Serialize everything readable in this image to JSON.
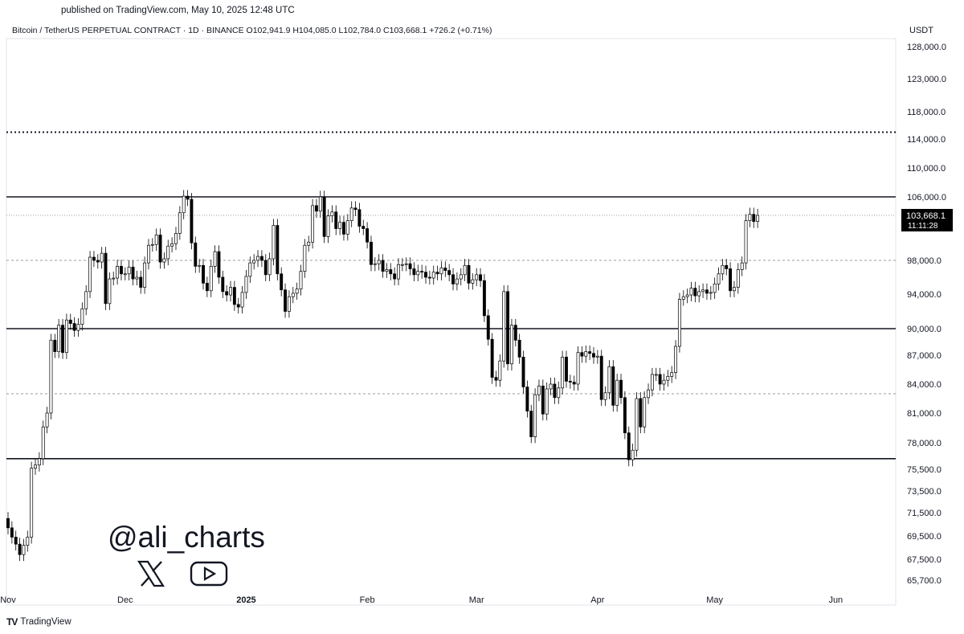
{
  "header": {
    "published": "published on TradingView.com, May 10, 2025 12:48 UTC",
    "title": "Bitcoin / TetherUS PERPETUAL CONTRACT · 1D · BINANCE  O102,941.9  H104,085.0  L102,784.0  C103,668.1  +726.2 (+0.71%)",
    "currency": "USDT"
  },
  "footer": {
    "brand": "TradingView"
  },
  "watermark": {
    "handle": "@ali_charts",
    "icons": [
      "x-logo-icon",
      "youtube-icon"
    ]
  },
  "colors": {
    "up": "#ffffff",
    "down": "#000000",
    "line": "#000000",
    "price_tag_bg": "#000000"
  },
  "chart_data": {
    "type": "candlestick",
    "symbol": "BTCUSDT.P",
    "timeframe": "1D",
    "ylabel": "USDT",
    "y_ticks": [
      128000,
      123000,
      118000,
      114000,
      110000,
      106000,
      98000,
      94000,
      90000,
      87000,
      84000,
      81000,
      78000,
      75500,
      73500,
      71500,
      69500,
      67500,
      65700
    ],
    "y_tick_labels": [
      "128,000.0",
      "123,000.0",
      "118,000.0",
      "114,000.0",
      "110,000.0",
      "106,000.0",
      "98,000.0",
      "94,000.0",
      "90,000.0",
      "87,000.0",
      "84,000.0",
      "81,000.0",
      "78,000.0",
      "75,500.0",
      "73,500.0",
      "71,500.0",
      "69,500.0",
      "67,500.0",
      "65,700.0"
    ],
    "x_ticks": [
      {
        "date": "2024-11-01",
        "label": "Nov"
      },
      {
        "date": "2024-12-01",
        "label": "Dec"
      },
      {
        "date": "2025-01-01",
        "label": "2025"
      },
      {
        "date": "2025-02-01",
        "label": "Feb"
      },
      {
        "date": "2025-03-01",
        "label": "Mar"
      },
      {
        "date": "2025-04-01",
        "label": "Apr"
      },
      {
        "date": "2025-05-01",
        "label": "May"
      },
      {
        "date": "2025-06-01",
        "label": "Jun"
      }
    ],
    "x_range": [
      "2024-11-01",
      "2025-06-10"
    ],
    "y_range": [
      65000,
      130000
    ],
    "last_price": {
      "value": 103668.1,
      "label": "103,668.1",
      "countdown": "11:11:28"
    },
    "horizontal_lines": [
      {
        "value": 106000,
        "style": "solid"
      },
      {
        "value": 90000,
        "style": "solid"
      },
      {
        "value": 76500,
        "style": "solid"
      },
      {
        "value": 115000,
        "style": "dotted"
      },
      {
        "value": 98000,
        "style": "dashed"
      },
      {
        "value": 83000,
        "style": "dashed"
      }
    ],
    "start_date": "2024-11-01",
    "closes": [
      70200,
      69400,
      68800,
      67900,
      68700,
      69400,
      75600,
      75900,
      76500,
      79600,
      81000,
      88700,
      87400,
      90400,
      87300,
      91000,
      90600,
      89800,
      90500,
      92300,
      94300,
      98400,
      98000,
      97800,
      98900,
      92900,
      95800,
      95900,
      97300,
      96400,
      96400,
      97200,
      95800,
      96000,
      94800,
      97700,
      99900,
      100000,
      101200,
      97800,
      98200,
      99800,
      100100,
      101400,
      104000,
      106100,
      105700,
      100200,
      97300,
      97400,
      95300,
      94400,
      97300,
      99100,
      96000,
      94300,
      93900,
      94800,
      92800,
      92500,
      94200,
      96100,
      97700,
      98000,
      98500,
      98000,
      96300,
      98200,
      102400,
      96400,
      94500,
      92000,
      93700,
      94100,
      94600,
      96700,
      99900,
      100300,
      104900,
      104200,
      106000,
      101000,
      103600,
      104100,
      102000,
      102800,
      101300,
      103000,
      104600,
      104400,
      102300,
      102000,
      100300,
      97500,
      97600,
      98000,
      96700,
      96900,
      96400,
      95800,
      97500,
      97500,
      97600,
      97000,
      96300,
      96700,
      96600,
      96000,
      95900,
      96600,
      96400,
      97100,
      96800,
      96300,
      95200,
      95800,
      96300,
      97400,
      95300,
      95700,
      96300,
      95600,
      91500,
      88800,
      84700,
      84400,
      86400,
      94300,
      86100,
      90400,
      88700,
      86800,
      83700,
      81200,
      78600,
      82900,
      83800,
      80900,
      83500,
      84000,
      82600,
      83600,
      86800,
      84300,
      84200,
      84000,
      87300,
      86900,
      87400,
      87200,
      86800,
      86900,
      82400,
      83100,
      85800,
      81800,
      84400,
      82600,
      79000,
      76400,
      77300,
      82500,
      79600,
      82600,
      83400,
      85000,
      85000,
      84000,
      84400,
      84800,
      85200,
      88000,
      93400,
      93700,
      93900,
      94700,
      93800,
      94300,
      94500,
      94100,
      94200,
      95200,
      96400,
      97400,
      97000,
      94400,
      94800,
      96900,
      97700,
      103000,
      103800,
      102900,
      103668
    ]
  }
}
